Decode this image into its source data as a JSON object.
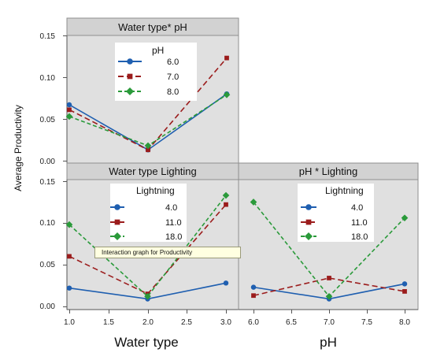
{
  "chart_data": {
    "type": "line",
    "ylabel": "Average Productivity",
    "colors": {
      "blue": "#1f5fb0",
      "red": "#9b1c1c",
      "green": "#2a9a3a"
    },
    "panels": [
      {
        "id": "wt-ph",
        "title": "Water type* pH",
        "x": [
          1,
          2,
          3
        ],
        "ylim": [
          0,
          0.15
        ],
        "yticks": [
          "0.15",
          "0.10",
          "0.05",
          "0.00"
        ],
        "legend_title": "pH",
        "series": [
          {
            "name": "6.0",
            "color": "blue",
            "marker": "circle",
            "values": [
              0.067,
              0.013,
              0.08
            ]
          },
          {
            "name": "7.0",
            "color": "red",
            "marker": "square",
            "values": [
              0.061,
              0.013,
              0.123
            ]
          },
          {
            "name": "8.0",
            "color": "green",
            "marker": "diamond",
            "values": [
              0.053,
              0.018,
              0.079
            ]
          }
        ]
      },
      {
        "id": "wt-light",
        "title": "Water type Lighting",
        "x": [
          1,
          2,
          3
        ],
        "ylim": [
          0,
          0.15
        ],
        "yticks": [
          "0.15",
          "0.10",
          "0.05",
          "0.00"
        ],
        "xticks": [
          "1.0",
          "1.5",
          "2.0",
          "2.5",
          "3.0"
        ],
        "xlabel": "Water type",
        "legend_title": "Lightning",
        "series": [
          {
            "name": "4.0",
            "color": "blue",
            "marker": "circle",
            "values": [
              0.022,
              0.009,
              0.028
            ]
          },
          {
            "name": "11.0",
            "color": "red",
            "marker": "square",
            "values": [
              0.06,
              0.015,
              0.122
            ]
          },
          {
            "name": "18.0",
            "color": "green",
            "marker": "diamond",
            "values": [
              0.098,
              0.012,
              0.133
            ]
          }
        ]
      },
      {
        "id": "ph-light",
        "title": "pH * Lighting",
        "x": [
          6,
          7,
          8
        ],
        "ylim": [
          0,
          0.15
        ],
        "xticks": [
          "6.0",
          "6.5",
          "7.0",
          "7.5",
          "8.0"
        ],
        "xlabel": "pH",
        "legend_title": "Lightning",
        "series": [
          {
            "name": "4.0",
            "color": "blue",
            "marker": "circle",
            "values": [
              0.023,
              0.009,
              0.027
            ]
          },
          {
            "name": "11.0",
            "color": "red",
            "marker": "square",
            "values": [
              0.013,
              0.034,
              0.018
            ]
          },
          {
            "name": "18.0",
            "color": "green",
            "marker": "diamond",
            "values": [
              0.125,
              0.012,
              0.106
            ]
          }
        ]
      }
    ]
  },
  "tooltip": {
    "text": "Interaction graph for Productivity"
  }
}
